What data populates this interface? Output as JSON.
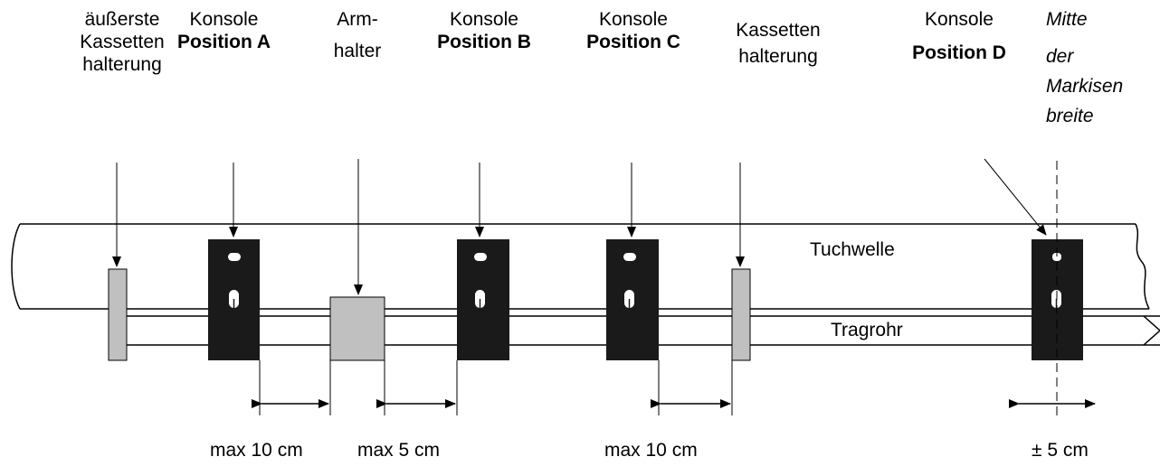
{
  "labels": {
    "outer_cassette": [
      "äußerste",
      "Kassetten",
      "halterung"
    ],
    "console_a": [
      "Konsole",
      "Position A"
    ],
    "arm_holder": [
      "Arm-",
      "halter"
    ],
    "console_b": [
      "Konsole",
      "Position B"
    ],
    "console_c": [
      "Konsole",
      "Position C"
    ],
    "cassette": [
      "Kassetten",
      "halterung"
    ],
    "console_d": [
      "Konsole",
      "Position D"
    ],
    "center": [
      "Mitte",
      "der",
      "Markisen",
      "breite"
    ]
  },
  "parts": {
    "tuchwelle": "Tuchwelle",
    "tragrohr": "Tragrohr"
  },
  "dimensions": {
    "d1": "max 10 cm",
    "d2": "max 5 cm",
    "d3": "max 10 cm",
    "d4": "± 5 cm"
  },
  "colors": {
    "console": "#1a1a1a",
    "holder": "#c0c0c0",
    "line": "#000000"
  }
}
